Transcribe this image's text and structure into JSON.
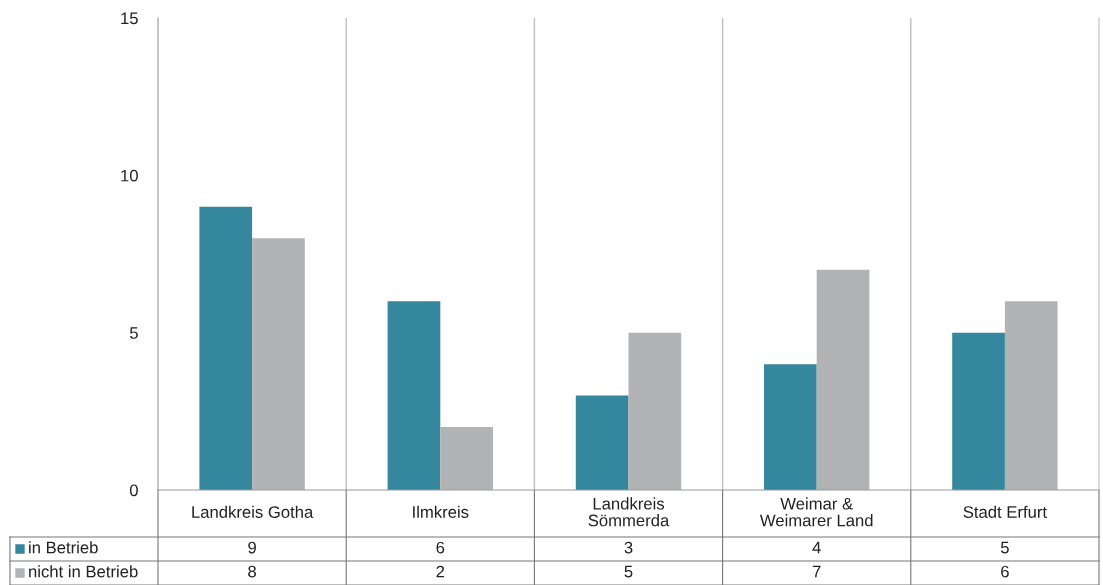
{
  "chart_data": {
    "type": "bar",
    "categories": [
      "Landkreis Gotha",
      "Ilmkreis",
      "Landkreis Sömmerda",
      "Weimar & Weimarer Land",
      "Stadt Erfurt"
    ],
    "series": [
      {
        "name": "in Betrieb",
        "color": "#34879c",
        "values": [
          9,
          6,
          3,
          4,
          5
        ]
      },
      {
        "name": "nicht in Betrieb",
        "color": "#b1b3b4",
        "values": [
          8,
          2,
          5,
          7,
          6
        ]
      }
    ],
    "ylim": [
      0,
      15
    ],
    "yticks": [
      0,
      5,
      10,
      15
    ],
    "grid": "x",
    "legend": "bottom",
    "data_labels": true
  }
}
